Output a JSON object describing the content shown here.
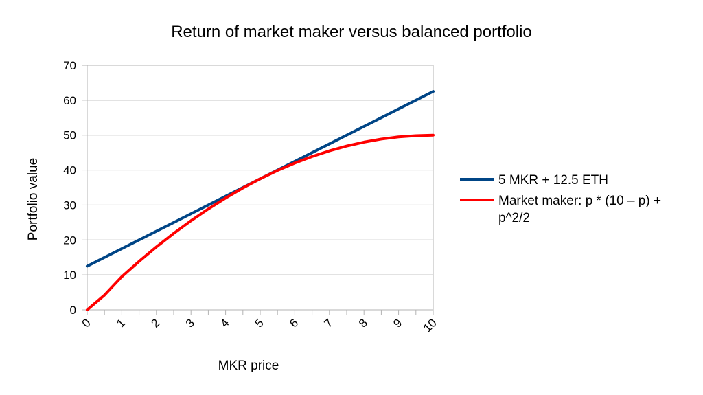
{
  "chart_data": {
    "type": "line",
    "title": "Return of market maker versus balanced portfolio",
    "xlabel": "MKR price",
    "ylabel": "Portfolio value",
    "xlim": [
      0,
      10
    ],
    "ylim": [
      0,
      70
    ],
    "x_ticks": [
      0,
      1,
      2,
      3,
      4,
      5,
      6,
      7,
      8,
      9,
      10
    ],
    "y_ticks": [
      0,
      10,
      20,
      30,
      40,
      50,
      60,
      70
    ],
    "grid": true,
    "legend_position": "right",
    "x": [
      0,
      1,
      2,
      3,
      4,
      5,
      6,
      7,
      8,
      9,
      10
    ],
    "series": [
      {
        "name": "5 MKR + 12.5 ETH",
        "color": "#004586",
        "values": [
          12.5,
          17.5,
          22.5,
          27.5,
          32.5,
          37.5,
          42.5,
          47.5,
          52.5,
          57.5,
          62.5
        ]
      },
      {
        "name": "Market maker: p * (10 – p) + p^2/2",
        "legend_lines": [
          "Market maker: p * (10 – p) +",
          "p^2/2"
        ],
        "color": "#ff0000",
        "values": [
          0,
          9.5,
          18,
          25.5,
          32,
          37.5,
          42,
          45.5,
          48,
          49.5,
          50
        ]
      }
    ]
  }
}
